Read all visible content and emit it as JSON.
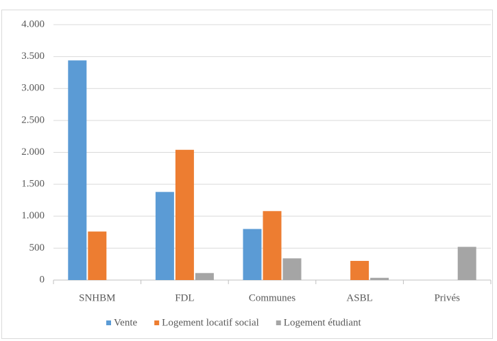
{
  "chart_data": {
    "type": "bar",
    "categories": [
      "SNHBM",
      "FDL",
      "Communes",
      "ASBL",
      "Privés"
    ],
    "series": [
      {
        "name": "Vente",
        "color": "#5b9bd5",
        "values": [
          3440,
          1380,
          800,
          0,
          0
        ]
      },
      {
        "name": "Logement locatif social",
        "color": "#ed7d31",
        "values": [
          760,
          2040,
          1080,
          300,
          0
        ]
      },
      {
        "name": "Logement étudiant",
        "color": "#a5a5a5",
        "values": [
          0,
          110,
          340,
          35,
          520
        ]
      }
    ],
    "ylim": [
      0,
      4000
    ],
    "yticks": [
      0,
      500,
      {
        "value": 1000,
        "label": "1.000"
      },
      {
        "value": 1500,
        "label": "1.500"
      },
      {
        "value": 2000,
        "label": "2.000"
      },
      {
        "value": 2500,
        "label": "2.500"
      },
      {
        "value": 3000,
        "label": "3.000"
      },
      {
        "value": 3500,
        "label": "3.500"
      },
      {
        "value": 4000,
        "label": "4.000"
      }
    ],
    "grid": true,
    "legend": "bottom"
  }
}
